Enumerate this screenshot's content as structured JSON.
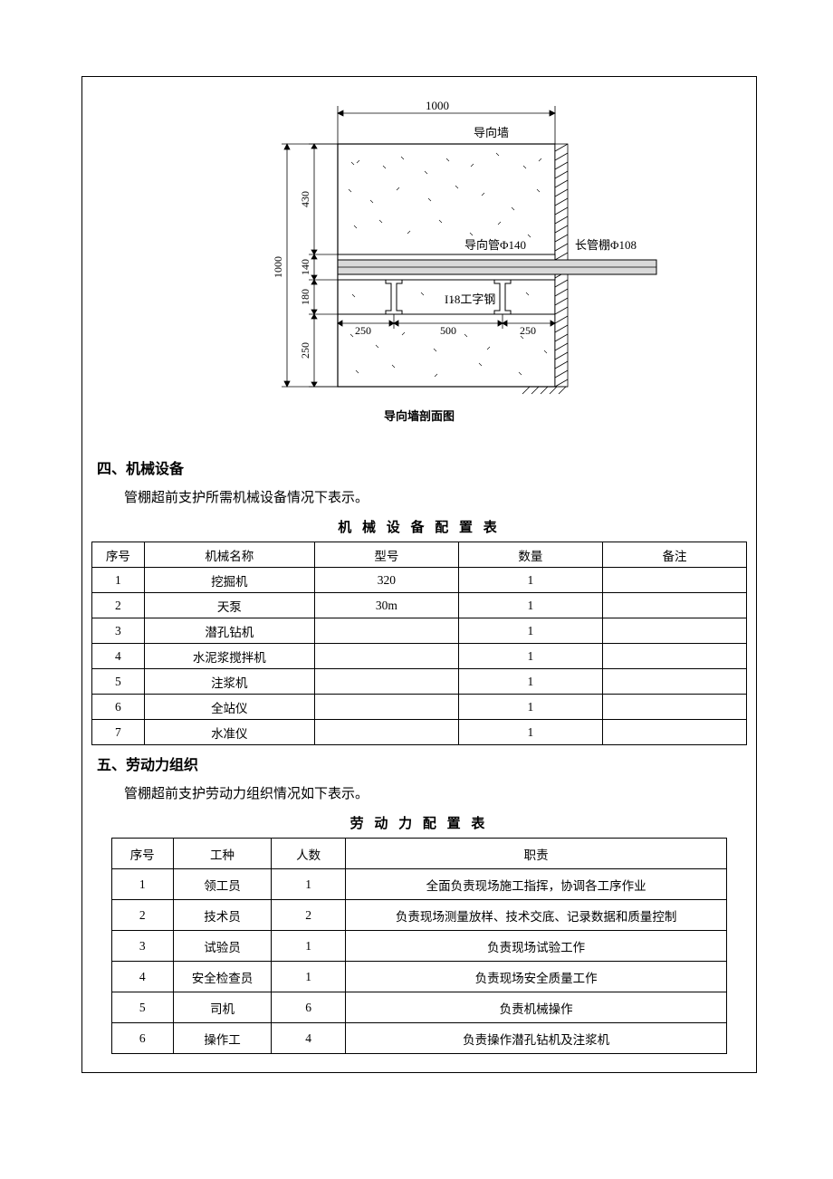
{
  "diagram": {
    "caption": "导向墙剖面图",
    "width_label": "1000",
    "top_dim": "1000",
    "title_inside": "导向墙",
    "pipe_guide_label": "导向管Φ140",
    "long_pipe_label": "长管棚Φ108",
    "ibeam_label": "I18工字钢",
    "left_height": "1000",
    "seg_430": "430",
    "seg_140": "140",
    "seg_180": "180",
    "seg_250v": "250",
    "bot_250_l": "250",
    "bot_500": "500",
    "bot_250_r": "250",
    "line_color": "#000000",
    "hatched_fill": "#bfbfbf",
    "concrete_mark_color": "#1a1a1a"
  },
  "section4": {
    "heading": "四、机械设备",
    "para": "管棚超前支护所需机械设备情况下表示。",
    "table_title": "机 械 设 备 配 置 表",
    "columns": [
      "序号",
      "机械名称",
      "型号",
      "数量",
      "备注"
    ],
    "col_widths": [
      "8%",
      "26%",
      "22%",
      "22%",
      "22%"
    ],
    "rows": [
      [
        "1",
        "挖掘机",
        "320",
        "1",
        ""
      ],
      [
        "2",
        "天泵",
        "30m",
        "1",
        ""
      ],
      [
        "3",
        "潜孔钻机",
        "",
        "1",
        ""
      ],
      [
        "4",
        "水泥浆搅拌机",
        "",
        "1",
        ""
      ],
      [
        "5",
        "注浆机",
        "",
        "1",
        ""
      ],
      [
        "6",
        "全站仪",
        "",
        "1",
        ""
      ],
      [
        "7",
        "水准仪",
        "",
        "1",
        ""
      ]
    ]
  },
  "section5": {
    "heading": "五、劳动力组织",
    "para": "管棚超前支护劳动力组织情况如下表示。",
    "table_title": "劳 动 力 配 置 表",
    "columns": [
      "序号",
      "工种",
      "人数",
      "职责"
    ],
    "col_widths": [
      "10%",
      "16%",
      "12%",
      "62%"
    ],
    "rows": [
      [
        "1",
        "领工员",
        "1",
        "全面负责现场施工指挥，协调各工序作业"
      ],
      [
        "2",
        "技术员",
        "2",
        "负责现场测量放样、技术交底、记录数据和质量控制"
      ],
      [
        "3",
        "试验员",
        "1",
        "负责现场试验工作"
      ],
      [
        "4",
        "安全检查员",
        "1",
        "负责现场安全质量工作"
      ],
      [
        "5",
        "司机",
        "6",
        "负责机械操作"
      ],
      [
        "6",
        "操作工",
        "4",
        "负责操作潜孔钻机及注浆机"
      ]
    ]
  }
}
